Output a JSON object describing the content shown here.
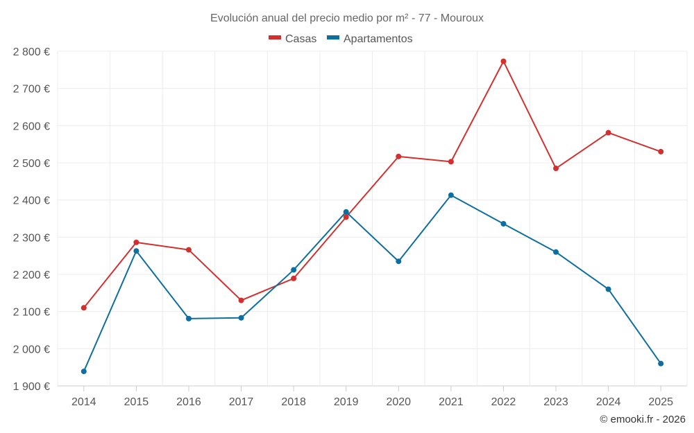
{
  "chart_data": {
    "type": "line",
    "title": "Evolución anual del precio medio por m² - 77 - Mouroux",
    "categories": [
      "2014",
      "2015",
      "2016",
      "2017",
      "2018",
      "2019",
      "2020",
      "2021",
      "2022",
      "2023",
      "2024",
      "2025"
    ],
    "series": [
      {
        "name": "Casas",
        "color": "#d32f2f",
        "values": [
          2110,
          2286,
          2266,
          2130,
          2189,
          2354,
          2517,
          2503,
          2773,
          2485,
          2581,
          2530
        ]
      },
      {
        "name": "Apartamentos",
        "color": "#0d6ea0",
        "values": [
          1939,
          2263,
          2081,
          2083,
          2212,
          2368,
          2235,
          2413,
          2336,
          2260,
          2160,
          1960
        ]
      }
    ],
    "ylim": [
      1900,
      2800
    ],
    "yticks": [
      1900,
      2000,
      2100,
      2200,
      2300,
      2400,
      2500,
      2600,
      2700,
      2800
    ],
    "ytick_labels": [
      "1 900 €",
      "2 000 €",
      "2 100 €",
      "2 200 €",
      "2 300 €",
      "2 400 €",
      "2 500 €",
      "2 600 €",
      "2 700 €",
      "2 800 €"
    ],
    "xlabel": "",
    "ylabel": "",
    "grid": true,
    "legend_position": "top-center"
  },
  "credit": "© emooki.fr - 2026"
}
